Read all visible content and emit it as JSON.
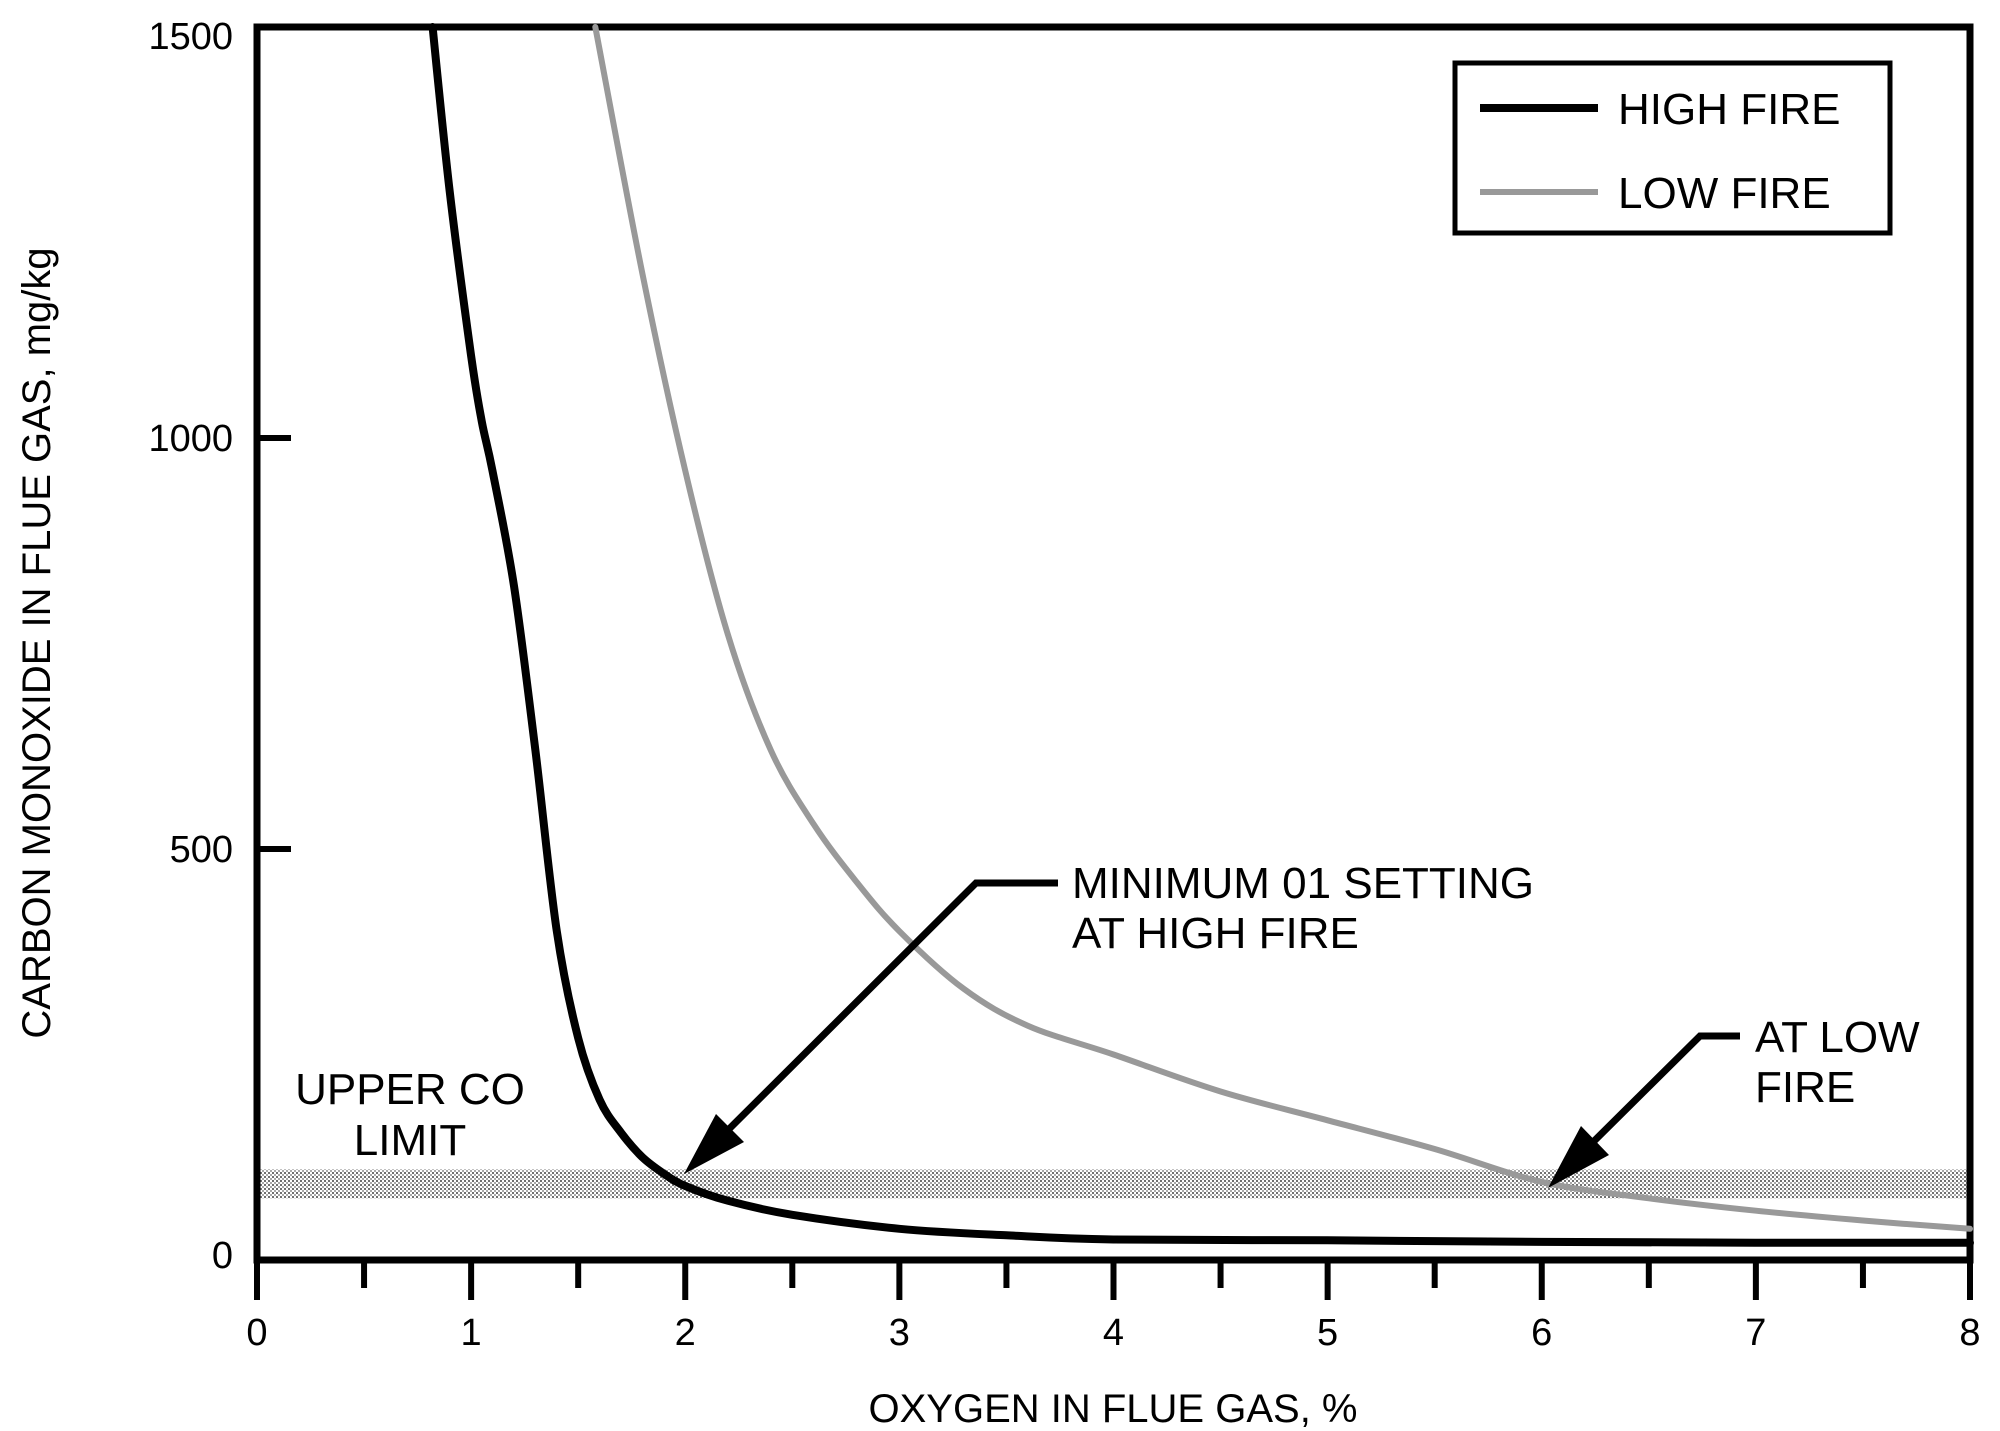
{
  "chart_data": {
    "type": "line",
    "title": "",
    "xlabel": "OXYGEN IN FLUE GAS, %",
    "ylabel": "CARBON MONOXIDE IN FLUE GAS, mg/kg",
    "xlim": [
      0,
      8
    ],
    "ylim": [
      0,
      1500
    ],
    "x_ticks": [
      "0",
      "1",
      "2",
      "3",
      "4",
      "5",
      "6",
      "7",
      "8"
    ],
    "y_ticks": [
      "0",
      "500",
      "1000",
      "1500"
    ],
    "grid": false,
    "legend_position": "top-right",
    "series": [
      {
        "name": "HIGH FIRE",
        "color": "#000000",
        "x": [
          0.82,
          0.9,
          1.0,
          1.05,
          1.1,
          1.2,
          1.3,
          1.4,
          1.5,
          1.6,
          1.7,
          1.8,
          1.9,
          2.0,
          2.2,
          2.5,
          3.0,
          3.5,
          4.0,
          5.0,
          6.0,
          7.0,
          8.0
        ],
        "y": [
          1500,
          1300,
          1100,
          1020,
          960,
          820,
          620,
          400,
          270,
          195,
          155,
          125,
          105,
          90,
          72,
          55,
          38,
          30,
          25,
          24,
          22,
          21,
          21
        ]
      },
      {
        "name": "LOW FIRE",
        "color": "#999999",
        "x": [
          1.58,
          1.8,
          2.0,
          2.2,
          2.4,
          2.6,
          2.8,
          3.0,
          3.3,
          3.6,
          4.0,
          4.5,
          5.0,
          5.5,
          6.0,
          6.5,
          7.0,
          7.5,
          8.0
        ],
        "y": [
          1500,
          1200,
          960,
          760,
          620,
          530,
          460,
          400,
          330,
          285,
          250,
          205,
          170,
          135,
          95,
          75,
          60,
          48,
          38
        ]
      }
    ],
    "bands": [
      {
        "label": "UPPER CO LIMIT",
        "y_range": [
          75,
          110
        ]
      }
    ],
    "annotations": [
      {
        "text": "MINIMUM 01 SETTING\nAT HIGH FIRE",
        "target_x": 2.0,
        "target_y": 95
      },
      {
        "text": "AT LOW\nFIRE",
        "target_x": 6.0,
        "target_y": 92
      }
    ]
  },
  "labels": {
    "band_line1": "UPPER CO",
    "band_line2": "LIMIT",
    "min_o2_line1": "MINIMUM 01 SETTING",
    "min_o2_line2": "AT HIGH FIRE",
    "low_fire_line1": "AT LOW",
    "low_fire_line2": "FIRE"
  }
}
